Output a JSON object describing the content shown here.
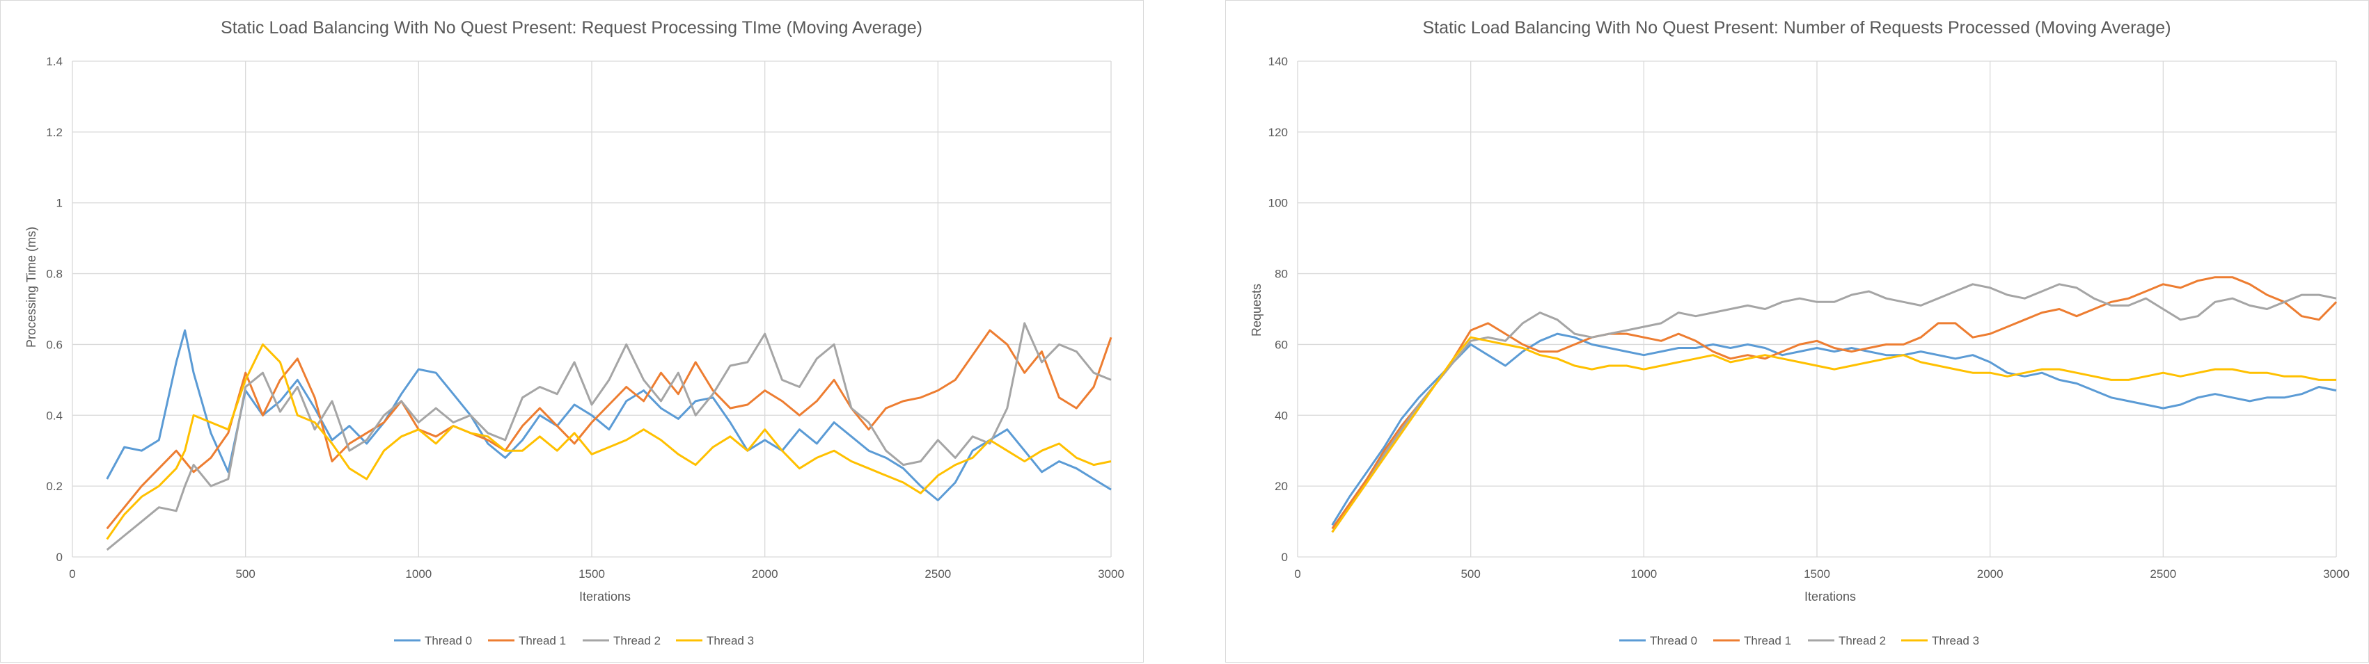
{
  "charts": [
    {
      "title": "Static Load Balancing With No Quest Present: Request Processing TIme (Moving Average)",
      "xlabel": "Iterations",
      "ylabel": "Processing Time (ms)",
      "legend": [
        "Thread 0",
        "Thread 1",
        "Thread 2",
        "Thread 3"
      ]
    },
    {
      "title": "Static Load Balancing With No Quest Present: Number of Requests Processed (Moving Average)",
      "xlabel": "Iterations",
      "ylabel": "Requests",
      "legend": [
        "Thread 0",
        "Thread 1",
        "Thread 2",
        "Thread 3"
      ]
    }
  ],
  "colors": {
    "thread0": "#5b9bd5",
    "thread1": "#ed7d31",
    "thread2": "#a5a5a5",
    "thread3": "#ffc000",
    "grid": "#d9d9d9",
    "text": "#595959"
  },
  "chart_data": [
    {
      "type": "line",
      "title": "Static Load Balancing With No Quest Present: Request Processing TIme (Moving Average)",
      "xlabel": "Iterations",
      "ylabel": "Processing Time (ms)",
      "xlim": [
        0,
        3000
      ],
      "ylim": [
        0,
        1.4
      ],
      "xticks": [
        "0",
        "500",
        "1000",
        "1500",
        "2000",
        "2500",
        "3000"
      ],
      "yticks": [
        "0",
        "0.2",
        "0.4",
        "0.6",
        "0.8",
        "1",
        "1.2",
        "1.4"
      ],
      "grid": true,
      "legend_position": "bottom",
      "x": [
        100,
        150,
        200,
        250,
        300,
        325,
        350,
        400,
        450,
        500,
        550,
        600,
        650,
        700,
        750,
        800,
        850,
        900,
        950,
        1000,
        1050,
        1100,
        1150,
        1200,
        1250,
        1300,
        1350,
        1400,
        1450,
        1500,
        1550,
        1600,
        1650,
        1700,
        1750,
        1800,
        1850,
        1900,
        1950,
        2000,
        2050,
        2100,
        2150,
        2200,
        2250,
        2300,
        2350,
        2400,
        2450,
        2500,
        2550,
        2600,
        2650,
        2700,
        2750,
        2800,
        2850,
        2900,
        2950,
        3000
      ],
      "series": [
        {
          "name": "Thread 0",
          "color": "#5b9bd5",
          "values": [
            0.22,
            0.31,
            0.3,
            0.33,
            0.55,
            0.64,
            0.52,
            0.35,
            0.24,
            0.47,
            0.4,
            0.44,
            0.5,
            0.42,
            0.33,
            0.37,
            0.32,
            0.38,
            0.46,
            0.53,
            0.52,
            0.46,
            0.4,
            0.32,
            0.28,
            0.33,
            0.4,
            0.37,
            0.43,
            0.4,
            0.36,
            0.44,
            0.47,
            0.42,
            0.39,
            0.44,
            0.45,
            0.38,
            0.3,
            0.33,
            0.3,
            0.36,
            0.32,
            0.38,
            0.34,
            0.3,
            0.28,
            0.25,
            0.2,
            0.16,
            0.21,
            0.3,
            0.33,
            0.36,
            0.3,
            0.24,
            0.27,
            0.25,
            0.22,
            0.19
          ]
        },
        {
          "name": "Thread 1",
          "color": "#ed7d31",
          "values": [
            0.08,
            0.14,
            0.2,
            0.25,
            0.3,
            0.27,
            0.24,
            0.28,
            0.35,
            0.52,
            0.4,
            0.5,
            0.56,
            0.45,
            0.27,
            0.32,
            0.35,
            0.38,
            0.44,
            0.36,
            0.34,
            0.37,
            0.35,
            0.33,
            0.3,
            0.37,
            0.42,
            0.37,
            0.32,
            0.38,
            0.43,
            0.48,
            0.44,
            0.52,
            0.46,
            0.55,
            0.47,
            0.42,
            0.43,
            0.47,
            0.44,
            0.4,
            0.44,
            0.5,
            0.42,
            0.36,
            0.42,
            0.44,
            0.45,
            0.47,
            0.5,
            0.57,
            0.64,
            0.6,
            0.52,
            0.58,
            0.45,
            0.42,
            0.48,
            0.62
          ]
        },
        {
          "name": "Thread 2",
          "color": "#a5a5a5",
          "values": [
            0.02,
            0.06,
            0.1,
            0.14,
            0.13,
            0.2,
            0.26,
            0.2,
            0.22,
            0.48,
            0.52,
            0.41,
            0.48,
            0.36,
            0.44,
            0.3,
            0.33,
            0.4,
            0.44,
            0.38,
            0.42,
            0.38,
            0.4,
            0.35,
            0.33,
            0.45,
            0.48,
            0.46,
            0.55,
            0.43,
            0.5,
            0.6,
            0.5,
            0.44,
            0.52,
            0.4,
            0.46,
            0.54,
            0.55,
            0.63,
            0.5,
            0.48,
            0.56,
            0.6,
            0.42,
            0.38,
            0.3,
            0.26,
            0.27,
            0.33,
            0.28,
            0.34,
            0.32,
            0.42,
            0.66,
            0.55,
            0.6,
            0.58,
            0.52,
            0.5
          ]
        },
        {
          "name": "Thread 3",
          "color": "#ffc000",
          "values": [
            0.05,
            0.12,
            0.17,
            0.2,
            0.25,
            0.3,
            0.4,
            0.38,
            0.36,
            0.5,
            0.6,
            0.55,
            0.4,
            0.38,
            0.32,
            0.25,
            0.22,
            0.3,
            0.34,
            0.36,
            0.32,
            0.37,
            0.35,
            0.34,
            0.3,
            0.3,
            0.34,
            0.3,
            0.35,
            0.29,
            0.31,
            0.33,
            0.36,
            0.33,
            0.29,
            0.26,
            0.31,
            0.34,
            0.3,
            0.36,
            0.3,
            0.25,
            0.28,
            0.3,
            0.27,
            0.25,
            0.23,
            0.21,
            0.18,
            0.23,
            0.26,
            0.28,
            0.33,
            0.3,
            0.27,
            0.3,
            0.32,
            0.28,
            0.26,
            0.27
          ]
        }
      ]
    },
    {
      "type": "line",
      "title": "Static Load Balancing With No Quest Present: Number of Requests Processed (Moving Average)",
      "xlabel": "Iterations",
      "ylabel": "Requests",
      "xlim": [
        0,
        3000
      ],
      "ylim": [
        0,
        140
      ],
      "xticks": [
        "0",
        "500",
        "1000",
        "1500",
        "2000",
        "2500",
        "3000"
      ],
      "yticks": [
        "0",
        "20",
        "40",
        "60",
        "80",
        "100",
        "120",
        "140"
      ],
      "grid": true,
      "legend_position": "bottom",
      "x": [
        100,
        150,
        200,
        250,
        300,
        350,
        400,
        450,
        500,
        550,
        600,
        650,
        700,
        750,
        800,
        850,
        900,
        950,
        1000,
        1050,
        1100,
        1150,
        1200,
        1250,
        1300,
        1350,
        1400,
        1450,
        1500,
        1550,
        1600,
        1650,
        1700,
        1750,
        1800,
        1850,
        1900,
        1950,
        2000,
        2050,
        2100,
        2150,
        2200,
        2250,
        2300,
        2350,
        2400,
        2450,
        2500,
        2550,
        2600,
        2650,
        2700,
        2750,
        2800,
        2850,
        2900,
        2950,
        3000
      ],
      "series": [
        {
          "name": "Thread 0",
          "color": "#5b9bd5",
          "values": [
            9,
            17,
            24,
            31,
            39,
            45,
            50,
            55,
            60,
            57,
            54,
            58,
            61,
            63,
            62,
            60,
            59,
            58,
            57,
            58,
            59,
            59,
            60,
            59,
            60,
            59,
            57,
            58,
            59,
            58,
            59,
            58,
            57,
            57,
            58,
            57,
            56,
            57,
            55,
            52,
            51,
            52,
            50,
            49,
            47,
            45,
            44,
            43,
            42,
            43,
            45,
            46,
            45,
            44,
            45,
            45,
            46,
            48,
            47
          ]
        },
        {
          "name": "Thread 1",
          "color": "#ed7d31",
          "values": [
            8,
            15,
            22,
            30,
            37,
            43,
            49,
            56,
            64,
            66,
            63,
            60,
            58,
            58,
            60,
            62,
            63,
            63,
            62,
            61,
            63,
            61,
            58,
            56,
            57,
            56,
            58,
            60,
            61,
            59,
            58,
            59,
            60,
            60,
            62,
            66,
            66,
            62,
            63,
            65,
            67,
            69,
            70,
            68,
            70,
            72,
            73,
            75,
            77,
            76,
            78,
            79,
            79,
            77,
            74,
            72,
            68,
            67,
            72
          ]
        },
        {
          "name": "Thread 2",
          "color": "#a5a5a5",
          "values": [
            7,
            14,
            21,
            29,
            36,
            43,
            49,
            55,
            61,
            62,
            61,
            66,
            69,
            67,
            63,
            62,
            63,
            64,
            65,
            66,
            69,
            68,
            69,
            70,
            71,
            70,
            72,
            73,
            72,
            72,
            74,
            75,
            73,
            72,
            71,
            73,
            75,
            77,
            76,
            74,
            73,
            75,
            77,
            76,
            73,
            71,
            71,
            73,
            70,
            67,
            68,
            72,
            73,
            71,
            70,
            72,
            74,
            74,
            73
          ]
        },
        {
          "name": "Thread 3",
          "color": "#ffc000",
          "values": [
            7,
            14,
            21,
            28,
            35,
            42,
            49,
            56,
            62,
            61,
            60,
            59,
            57,
            56,
            54,
            53,
            54,
            54,
            53,
            54,
            55,
            56,
            57,
            55,
            56,
            57,
            56,
            55,
            54,
            53,
            54,
            55,
            56,
            57,
            55,
            54,
            53,
            52,
            52,
            51,
            52,
            53,
            53,
            52,
            51,
            50,
            50,
            51,
            52,
            51,
            52,
            53,
            53,
            52,
            52,
            51,
            51,
            50,
            50
          ]
        }
      ]
    }
  ]
}
